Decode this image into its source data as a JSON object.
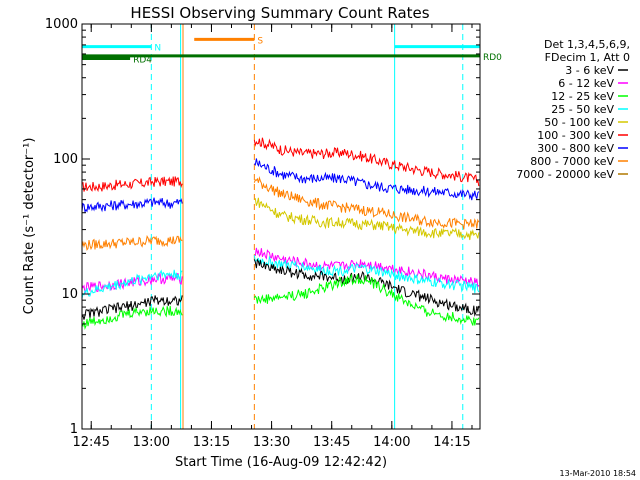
{
  "chart_data": {
    "type": "line",
    "title": "HESSI Observing Summary Count Rates",
    "xlabel": "Start Time (16-Aug-09 12:42:42)",
    "ylabel": "Count Rate (s⁻¹ detector⁻¹)",
    "yscale": "log",
    "xlim_minutes": [
      0,
      99.3
    ],
    "ylim": [
      1,
      1000
    ],
    "grid": false,
    "x_ticks": [
      {
        "m": 2.3,
        "label": "12:45"
      },
      {
        "m": 17.3,
        "label": "13:00"
      },
      {
        "m": 32.3,
        "label": "13:15"
      },
      {
        "m": 47.3,
        "label": "13:30"
      },
      {
        "m": 62.3,
        "label": "13:45"
      },
      {
        "m": 77.3,
        "label": "14:00"
      },
      {
        "m": 92.3,
        "label": "14:15"
      }
    ],
    "y_ticks": [
      {
        "v": 1,
        "label": "1"
      },
      {
        "v": 10,
        "label": "10"
      },
      {
        "v": 100,
        "label": "100"
      },
      {
        "v": 1000,
        "label": "1000"
      }
    ],
    "legend": {
      "position": "right",
      "header": [
        "Det 1,3,4,5,6,9,",
        "FDecim 1, Att 0"
      ],
      "entries": [
        {
          "label": "3 - 6 keV",
          "color": "#000000"
        },
        {
          "label": "6 - 12 keV",
          "color": "#ff00ff"
        },
        {
          "label": "12 - 25 keV",
          "color": "#00ff00"
        },
        {
          "label": "25 - 50 keV",
          "color": "#00ffff"
        },
        {
          "label": "50 - 100 keV",
          "color": "#d4c800"
        },
        {
          "label": "100 - 300 keV",
          "color": "#ff0000"
        },
        {
          "label": "300 - 800 keV",
          "color": "#0000ff"
        },
        {
          "label": "800 - 7000 keV",
          "color": "#ff8000"
        },
        {
          "label": "7000 - 20000 keV",
          "color": "#b07800"
        }
      ]
    },
    "series": [
      {
        "name": "100 - 300 keV",
        "color": "#ff0000",
        "x": [
          0,
          5,
          10,
          15,
          18,
          22,
          25,
          43,
          50,
          55,
          60,
          65,
          70,
          75,
          80,
          85,
          90,
          95,
          99
        ],
        "y": [
          62,
          63,
          65,
          66,
          68,
          68,
          69,
          140,
          117,
          110,
          110,
          112,
          105,
          95,
          88,
          82,
          78,
          74,
          69
        ]
      },
      {
        "name": "300 - 800 keV",
        "color": "#0000ff",
        "x": [
          0,
          5,
          10,
          15,
          18,
          22,
          25,
          43,
          50,
          55,
          60,
          65,
          70,
          75,
          80,
          85,
          90,
          95,
          99
        ],
        "y": [
          44,
          45,
          46,
          47,
          48,
          47,
          48,
          95,
          77,
          72,
          72,
          72,
          66,
          62,
          60,
          58,
          57,
          55,
          54
        ]
      },
      {
        "name": "800 - 7000 keV",
        "color": "#ff8000",
        "x": [
          0,
          5,
          10,
          15,
          18,
          22,
          25,
          43,
          50,
          55,
          60,
          65,
          70,
          75,
          80,
          85,
          90,
          95,
          99
        ],
        "y": [
          23,
          23.5,
          24,
          24.5,
          25,
          25,
          25,
          70,
          55,
          50,
          46,
          44,
          42,
          40,
          37,
          35,
          34,
          33,
          33
        ]
      },
      {
        "name": "50 - 100 keV",
        "color": "#d4c800",
        "x": [
          43,
          50,
          55,
          60,
          65,
          70,
          75,
          80,
          85,
          90,
          95,
          99
        ],
        "y": [
          50,
          38,
          36,
          34,
          34,
          33,
          32,
          30,
          29,
          28,
          28,
          27
        ]
      },
      {
        "name": "6 - 12 keV",
        "color": "#ff00ff",
        "x": [
          0,
          5,
          10,
          15,
          18,
          22,
          25,
          43,
          50,
          55,
          60,
          65,
          70,
          75,
          80,
          85,
          90,
          95,
          99
        ],
        "y": [
          11,
          11.5,
          12,
          12.5,
          13,
          13,
          13,
          21,
          18,
          17,
          16,
          16,
          17,
          16,
          15,
          14,
          13,
          12.5,
          12
        ]
      },
      {
        "name": "25 - 50 keV",
        "color": "#00ffff",
        "x": [
          0,
          5,
          10,
          15,
          18,
          22,
          25,
          43,
          50,
          55,
          60,
          65,
          70,
          75,
          80,
          85,
          90,
          95,
          99
        ],
        "y": [
          10,
          11,
          12,
          13,
          14,
          14,
          14,
          18,
          16.5,
          16,
          15,
          15,
          15.5,
          14.5,
          13.5,
          12.5,
          12,
          11.5,
          11
        ]
      },
      {
        "name": "3 - 6 keV",
        "color": "#000000",
        "x": [
          0,
          5,
          10,
          15,
          18,
          22,
          25,
          43,
          50,
          55,
          60,
          65,
          70,
          75,
          80,
          85,
          90,
          95,
          99
        ],
        "y": [
          7,
          7.5,
          8,
          8.5,
          9,
          9,
          9,
          17,
          15,
          14,
          13.5,
          13,
          13.5,
          12,
          10.5,
          9.5,
          8.5,
          8,
          7.5
        ]
      },
      {
        "name": "12 - 25 keV",
        "color": "#00ff00",
        "x": [
          0,
          5,
          10,
          15,
          18,
          22,
          25,
          43,
          50,
          55,
          60,
          65,
          70,
          75,
          80,
          85,
          90,
          95,
          99
        ],
        "y": [
          6,
          6.5,
          7,
          7.5,
          7.5,
          7.5,
          7.5,
          9,
          9.5,
          10,
          11,
          12.5,
          13,
          11,
          9,
          7.5,
          7,
          6.5,
          6.3
        ]
      }
    ],
    "flags": [
      {
        "label": "N",
        "color": "#00ffff",
        "level": 680,
        "ranges": [
          [
            0,
            17.3
          ],
          [
            78,
            99.3
          ]
        ]
      },
      {
        "label": "S",
        "color": "#ff8000",
        "level": 770,
        "ranges": [
          [
            28,
            43
          ]
        ]
      },
      {
        "label": "RD0",
        "color": "#007000",
        "level": 580,
        "ranges": [
          [
            0,
            99.3
          ]
        ]
      },
      {
        "label": "RD4",
        "color": "#007000",
        "level": 555,
        "ranges": [
          [
            0,
            12
          ]
        ]
      }
    ],
    "vertical_markers": [
      {
        "m": 17.3,
        "color": "#00ffff",
        "style": "dashed"
      },
      {
        "m": 24.6,
        "color": "#00ffff",
        "style": "solid"
      },
      {
        "m": 25.2,
        "color": "#ff8000",
        "style": "solid"
      },
      {
        "m": 43.0,
        "color": "#ff8000",
        "style": "dashed"
      },
      {
        "m": 78.0,
        "color": "#00ffff",
        "style": "solid"
      },
      {
        "m": 95.0,
        "color": "#00ffff",
        "style": "dashed"
      }
    ],
    "timestamp": "13-Mar-2010 18:54"
  }
}
